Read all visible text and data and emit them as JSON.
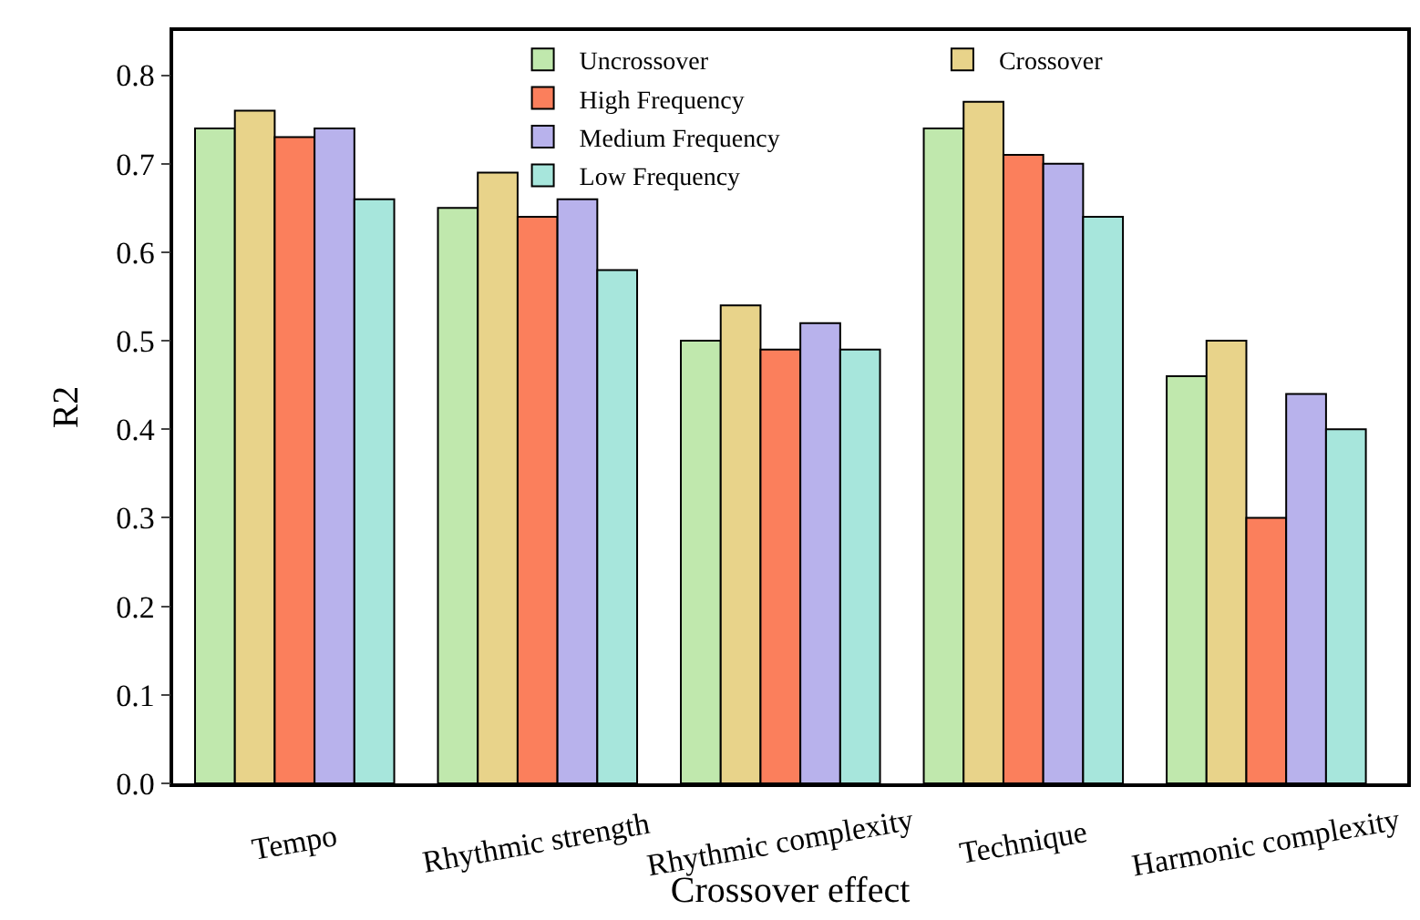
{
  "chart_data": {
    "type": "bar",
    "xlabel": "Crossover effect",
    "ylabel": "R2",
    "categories": [
      "Tempo",
      "Rhythmic strength",
      "Rhythmic complexity",
      "Technique",
      "Harmonic complexity"
    ],
    "series": [
      {
        "name": "Uncrossover",
        "color": "#c0e8ad",
        "values": [
          0.74,
          0.65,
          0.5,
          0.74,
          0.46
        ]
      },
      {
        "name": "Crossover",
        "color": "#e8d38a",
        "values": [
          0.76,
          0.69,
          0.54,
          0.77,
          0.5
        ]
      },
      {
        "name": "High Frequency",
        "color": "#fb7f5c",
        "values": [
          0.73,
          0.64,
          0.49,
          0.71,
          0.3
        ]
      },
      {
        "name": "Medium Frequency",
        "color": "#b8b2ec",
        "values": [
          0.74,
          0.66,
          0.52,
          0.7,
          0.44
        ]
      },
      {
        "name": "Low Frequency",
        "color": "#a7e6dc",
        "values": [
          0.66,
          0.58,
          0.49,
          0.64,
          0.4
        ]
      }
    ],
    "ylim": [
      0,
      0.85
    ],
    "yticks": [
      {
        "value": 0,
        "label": "0.0"
      },
      0.1,
      0.2,
      0.3,
      0.4,
      0.5,
      0.6,
      0.7,
      0.8
    ],
    "grid": false,
    "legend": "top"
  }
}
